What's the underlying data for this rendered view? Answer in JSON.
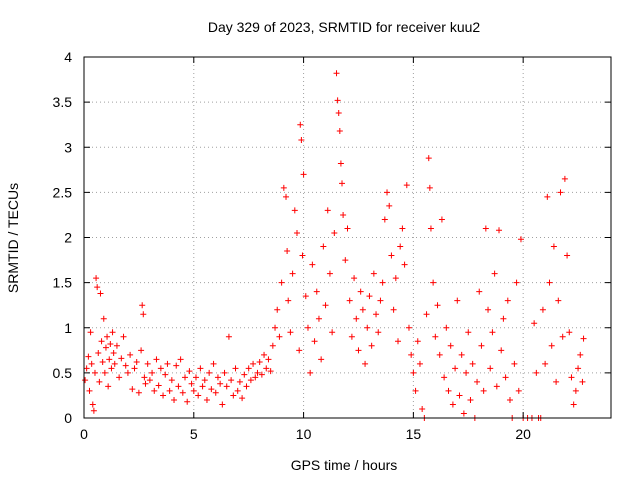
{
  "chart_data": {
    "type": "scatter",
    "title": "Day 329 of 2023, SRMTID for receiver kuu2",
    "xlabel": "GPS time / hours",
    "ylabel": "SRMTID / TECUs",
    "xlim": [
      0,
      24
    ],
    "ylim": [
      0,
      4
    ],
    "x_ticks": [
      0,
      5,
      10,
      15,
      20
    ],
    "x_tick_labels": [
      "0",
      "5",
      "10",
      "15",
      "20"
    ],
    "y_ticks": [
      0,
      0.5,
      1,
      1.5,
      2,
      2.5,
      3,
      3.5,
      4
    ],
    "y_tick_labels": [
      "0",
      "0.5",
      "1",
      "1.5",
      "2",
      "2.5",
      "3",
      "3.5",
      "4"
    ],
    "grid": true,
    "marker": "+",
    "series": [
      {
        "name": "SRMTID",
        "color": "#ff0000",
        "points": [
          [
            0.05,
            0.42
          ],
          [
            0.12,
            0.55
          ],
          [
            0.2,
            0.68
          ],
          [
            0.25,
            0.3
          ],
          [
            0.3,
            0.95
          ],
          [
            0.35,
            0.6
          ],
          [
            0.4,
            0.15
          ],
          [
            0.45,
            0.08
          ],
          [
            0.5,
            0.5
          ],
          [
            0.55,
            1.55
          ],
          [
            0.6,
            1.45
          ],
          [
            0.65,
            0.72
          ],
          [
            0.7,
            0.4
          ],
          [
            0.75,
            1.38
          ],
          [
            0.8,
            0.85
          ],
          [
            0.85,
            0.62
          ],
          [
            0.9,
            1.1
          ],
          [
            0.95,
            0.5
          ],
          [
            1.0,
            0.78
          ],
          [
            1.05,
            0.9
          ],
          [
            1.1,
            0.35
          ],
          [
            1.15,
            0.65
          ],
          [
            1.2,
            0.82
          ],
          [
            1.25,
            0.55
          ],
          [
            1.3,
            0.95
          ],
          [
            1.35,
            0.72
          ],
          [
            1.4,
            0.6
          ],
          [
            1.5,
            0.8
          ],
          [
            1.6,
            0.45
          ],
          [
            1.7,
            0.66
          ],
          [
            1.8,
            0.9
          ],
          [
            1.9,
            0.58
          ],
          [
            2.0,
            0.5
          ],
          [
            2.1,
            0.7
          ],
          [
            2.2,
            0.32
          ],
          [
            2.3,
            0.55
          ],
          [
            2.4,
            0.62
          ],
          [
            2.5,
            0.28
          ],
          [
            2.6,
            0.75
          ],
          [
            2.65,
            1.25
          ],
          [
            2.7,
            1.15
          ],
          [
            2.75,
            0.45
          ],
          [
            2.8,
            0.38
          ],
          [
            2.9,
            0.6
          ],
          [
            3.0,
            0.42
          ],
          [
            3.1,
            0.5
          ],
          [
            3.2,
            0.3
          ],
          [
            3.3,
            0.65
          ],
          [
            3.4,
            0.36
          ],
          [
            3.5,
            0.55
          ],
          [
            3.6,
            0.25
          ],
          [
            3.7,
            0.48
          ],
          [
            3.8,
            0.6
          ],
          [
            3.9,
            0.3
          ],
          [
            4.0,
            0.42
          ],
          [
            4.1,
            0.2
          ],
          [
            4.2,
            0.58
          ],
          [
            4.3,
            0.35
          ],
          [
            4.4,
            0.65
          ],
          [
            4.5,
            0.28
          ],
          [
            4.6,
            0.45
          ],
          [
            4.7,
            0.18
          ],
          [
            4.8,
            0.52
          ],
          [
            4.9,
            0.38
          ],
          [
            5.0,
            0.3
          ],
          [
            5.1,
            0.45
          ],
          [
            5.2,
            0.25
          ],
          [
            5.3,
            0.55
          ],
          [
            5.4,
            0.35
          ],
          [
            5.5,
            0.42
          ],
          [
            5.6,
            0.2
          ],
          [
            5.7,
            0.5
          ],
          [
            5.8,
            0.32
          ],
          [
            5.9,
            0.6
          ],
          [
            6.0,
            0.28
          ],
          [
            6.1,
            0.45
          ],
          [
            6.2,
            0.38
          ],
          [
            6.3,
            0.15
          ],
          [
            6.4,
            0.5
          ],
          [
            6.5,
            0.35
          ],
          [
            6.6,
            0.9
          ],
          [
            6.7,
            0.42
          ],
          [
            6.8,
            0.25
          ],
          [
            6.9,
            0.55
          ],
          [
            7.0,
            0.3
          ],
          [
            7.1,
            0.4
          ],
          [
            7.2,
            0.22
          ],
          [
            7.3,
            0.48
          ],
          [
            7.4,
            0.35
          ],
          [
            7.5,
            0.55
          ],
          [
            7.6,
            0.42
          ],
          [
            7.7,
            0.6
          ],
          [
            7.8,
            0.45
          ],
          [
            7.9,
            0.5
          ],
          [
            8.0,
            0.62
          ],
          [
            8.1,
            0.48
          ],
          [
            8.2,
            0.7
          ],
          [
            8.3,
            0.55
          ],
          [
            8.4,
            0.65
          ],
          [
            8.5,
            0.52
          ],
          [
            8.6,
            0.8
          ],
          [
            8.7,
            1.0
          ],
          [
            8.8,
            1.2
          ],
          [
            8.9,
            0.9
          ],
          [
            9.0,
            1.5
          ],
          [
            9.1,
            2.55
          ],
          [
            9.2,
            2.45
          ],
          [
            9.25,
            1.85
          ],
          [
            9.3,
            1.3
          ],
          [
            9.4,
            0.95
          ],
          [
            9.5,
            1.6
          ],
          [
            9.6,
            2.3
          ],
          [
            9.7,
            2.05
          ],
          [
            9.8,
            0.75
          ],
          [
            9.85,
            3.25
          ],
          [
            9.9,
            3.08
          ],
          [
            9.95,
            1.8
          ],
          [
            10.0,
            2.7
          ],
          [
            10.1,
            1.35
          ],
          [
            10.2,
            1.0
          ],
          [
            10.3,
            0.5
          ],
          [
            10.4,
            1.7
          ],
          [
            10.5,
            0.85
          ],
          [
            10.6,
            1.4
          ],
          [
            10.7,
            1.1
          ],
          [
            10.8,
            0.65
          ],
          [
            10.9,
            1.9
          ],
          [
            11.0,
            1.25
          ],
          [
            11.1,
            2.3
          ],
          [
            11.2,
            1.6
          ],
          [
            11.3,
            0.95
          ],
          [
            11.4,
            2.05
          ],
          [
            11.5,
            3.82
          ],
          [
            11.55,
            3.52
          ],
          [
            11.6,
            3.38
          ],
          [
            11.65,
            3.18
          ],
          [
            11.7,
            2.82
          ],
          [
            11.75,
            2.6
          ],
          [
            11.8,
            2.25
          ],
          [
            11.9,
            1.75
          ],
          [
            12.0,
            2.1
          ],
          [
            12.1,
            1.3
          ],
          [
            12.2,
            0.9
          ],
          [
            12.3,
            1.55
          ],
          [
            12.4,
            1.1
          ],
          [
            12.5,
            0.75
          ],
          [
            12.6,
            1.4
          ],
          [
            12.7,
            1.2
          ],
          [
            12.8,
            0.6
          ],
          [
            12.9,
            1.0
          ],
          [
            13.0,
            1.35
          ],
          [
            13.1,
            0.8
          ],
          [
            13.2,
            1.6
          ],
          [
            13.3,
            1.15
          ],
          [
            13.4,
            0.95
          ],
          [
            13.5,
            1.3
          ],
          [
            13.6,
            1.5
          ],
          [
            13.7,
            2.2
          ],
          [
            13.8,
            2.5
          ],
          [
            13.9,
            2.35
          ],
          [
            14.0,
            1.8
          ],
          [
            14.1,
            1.2
          ],
          [
            14.2,
            1.55
          ],
          [
            14.3,
            0.85
          ],
          [
            14.4,
            1.9
          ],
          [
            14.5,
            2.1
          ],
          [
            14.6,
            1.7
          ],
          [
            14.7,
            2.58
          ],
          [
            14.8,
            1.0
          ],
          [
            14.9,
            0.7
          ],
          [
            15.0,
            0.5
          ],
          [
            15.1,
            0.3
          ],
          [
            15.2,
            0.85
          ],
          [
            15.3,
            0.6
          ],
          [
            15.4,
            0.1
          ],
          [
            15.5,
            0.0
          ],
          [
            15.6,
            1.15
          ],
          [
            15.7,
            2.88
          ],
          [
            15.75,
            2.55
          ],
          [
            15.8,
            2.1
          ],
          [
            15.9,
            1.5
          ],
          [
            16.0,
            0.9
          ],
          [
            16.1,
            1.25
          ],
          [
            16.2,
            0.7
          ],
          [
            16.3,
            2.2
          ],
          [
            16.4,
            0.45
          ],
          [
            16.5,
            1.0
          ],
          [
            16.6,
            0.3
          ],
          [
            16.7,
            0.8
          ],
          [
            16.8,
            0.15
          ],
          [
            16.9,
            0.55
          ],
          [
            17.0,
            1.3
          ],
          [
            17.1,
            0.25
          ],
          [
            17.2,
            0.7
          ],
          [
            17.3,
            0.05
          ],
          [
            17.4,
            0.5
          ],
          [
            17.5,
            0.95
          ],
          [
            17.6,
            0.2
          ],
          [
            17.7,
            0.6
          ],
          [
            17.8,
            0.0
          ],
          [
            17.9,
            0.4
          ],
          [
            18.0,
            1.4
          ],
          [
            18.1,
            0.8
          ],
          [
            18.2,
            0.3
          ],
          [
            18.3,
            2.1
          ],
          [
            18.4,
            1.2
          ],
          [
            18.5,
            0.55
          ],
          [
            18.6,
            0.95
          ],
          [
            18.7,
            1.6
          ],
          [
            18.8,
            0.35
          ],
          [
            18.9,
            2.08
          ],
          [
            19.0,
            0.75
          ],
          [
            19.1,
            1.1
          ],
          [
            19.2,
            0.45
          ],
          [
            19.3,
            1.3
          ],
          [
            19.4,
            0.2
          ],
          [
            19.5,
            0.0
          ],
          [
            19.6,
            0.6
          ],
          [
            19.7,
            1.5
          ],
          [
            19.8,
            0.3
          ],
          [
            19.9,
            1.98
          ],
          [
            20.0,
            0.0
          ],
          [
            20.2,
            0.0
          ],
          [
            20.4,
            0.0
          ],
          [
            20.5,
            1.05
          ],
          [
            20.6,
            0.5
          ],
          [
            20.7,
            0.0
          ],
          [
            20.8,
            0.0
          ],
          [
            20.9,
            1.2
          ],
          [
            21.0,
            0.6
          ],
          [
            21.1,
            2.45
          ],
          [
            21.2,
            1.5
          ],
          [
            21.3,
            0.8
          ],
          [
            21.4,
            1.9
          ],
          [
            21.5,
            0.4
          ],
          [
            21.6,
            1.3
          ],
          [
            21.7,
            2.5
          ],
          [
            21.8,
            0.9
          ],
          [
            21.9,
            2.65
          ],
          [
            22.0,
            1.8
          ],
          [
            22.1,
            0.95
          ],
          [
            22.2,
            0.45
          ],
          [
            22.3,
            0.15
          ],
          [
            22.4,
            0.3
          ],
          [
            22.5,
            0.55
          ],
          [
            22.6,
            0.7
          ],
          [
            22.7,
            0.4
          ],
          [
            22.75,
            0.88
          ]
        ]
      }
    ]
  }
}
